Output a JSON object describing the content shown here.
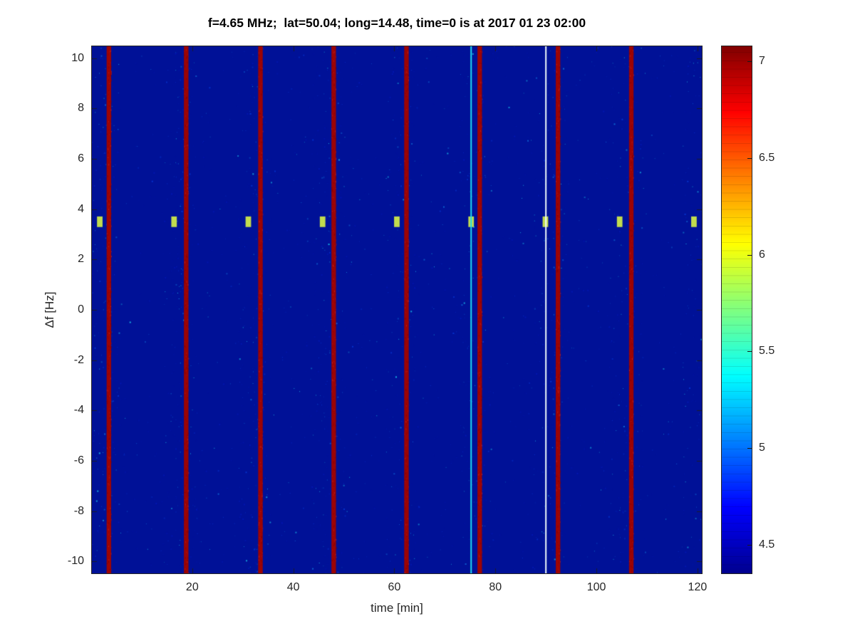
{
  "chart_data": {
    "type": "heatmap",
    "title": "f=4.65 MHz;  lat=50.04; long=14.48, time=0 is at 2017 01 23 02:00",
    "xlabel": "time [min]",
    "ylabel": "Δf [Hz]",
    "xlim": [
      0,
      121
    ],
    "ylim": [
      -10.5,
      10.5
    ],
    "x_ticks": [
      20,
      40,
      60,
      80,
      100,
      120
    ],
    "y_ticks": [
      10,
      8,
      6,
      4,
      2,
      0,
      -2,
      -4,
      -6,
      -8,
      -10
    ],
    "grid": false,
    "legend": "none",
    "clim": [
      4.35,
      7.08
    ],
    "colorbar_ticks": [
      4.5,
      5,
      5.5,
      6,
      6.5,
      7
    ],
    "colormap": "jet",
    "colormap_stops": [
      [
        0.0,
        "#00008f"
      ],
      [
        0.125,
        "#0000ff"
      ],
      [
        0.375,
        "#00ffff"
      ],
      [
        0.625,
        "#ffff00"
      ],
      [
        0.875,
        "#ff0000"
      ],
      [
        1.0,
        "#800000"
      ]
    ],
    "background": {
      "value": 4.4,
      "color": "#001197"
    },
    "red_stripes": {
      "description": "saturated vertical stripes about every 14.5 min",
      "times": [
        3.5,
        18.8,
        33.5,
        48.0,
        62.4,
        76.9,
        92.4,
        106.9
      ],
      "width_min": 0.9,
      "value": 7.05,
      "color": "#9c0404"
    },
    "thin_lines": [
      {
        "time": 75.2,
        "value": 5.3,
        "color": "#1fd9f0",
        "width_min": 0.28
      },
      {
        "time": 90.0,
        "value": null,
        "color": "#eefafa",
        "width_min": 0.28
      }
    ],
    "marker_dashes": {
      "delta_f": 3.5,
      "times": [
        1.7,
        16.4,
        31.1,
        45.8,
        60.5,
        75.2,
        89.9,
        104.6,
        119.3
      ],
      "value": 6.2,
      "color": "#c2dc4e",
      "width_min": 1.1,
      "height_hz": 0.12
    },
    "noise": {
      "description": "sparse blue speckle noise, denser in columns near stripes",
      "colors": [
        "#0318b4",
        "#0636d2",
        "#0f6fd8",
        "#19c3ea"
      ]
    }
  }
}
